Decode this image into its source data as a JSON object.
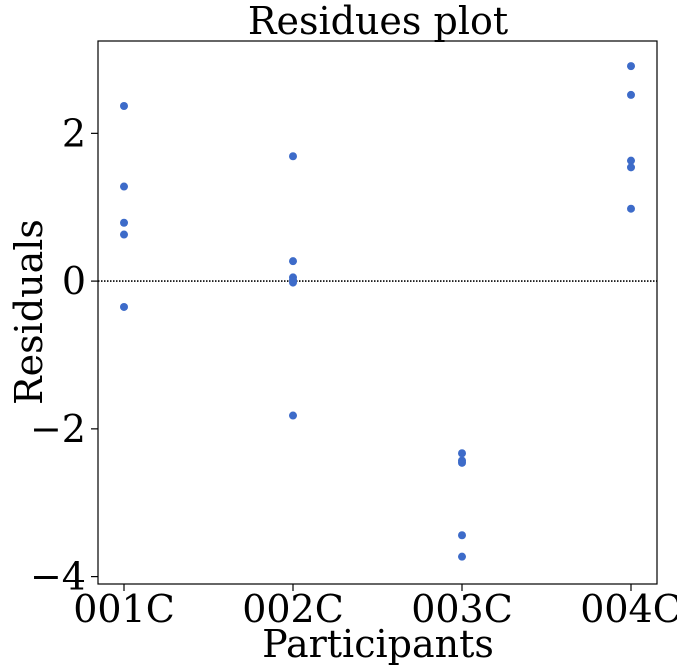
{
  "chart_data": {
    "type": "scatter",
    "title": "Residues plot",
    "xlabel": "Participants",
    "ylabel": "Residuals",
    "categories": [
      "001C",
      "002C",
      "003C",
      "004C"
    ],
    "ylim": [
      -4.1,
      3.25
    ],
    "yticks": [
      -4,
      -2,
      0,
      2
    ],
    "yticklabels": [
      "−4",
      "−2",
      "0",
      "2"
    ],
    "reference_line": {
      "y": 0,
      "style": "dotted"
    },
    "grid": false,
    "marker_color": "#3d6bc9",
    "points": [
      {
        "category": "001C",
        "y": 2.37
      },
      {
        "category": "001C",
        "y": 1.28
      },
      {
        "category": "001C",
        "y": 0.79
      },
      {
        "category": "001C",
        "y": 0.63
      },
      {
        "category": "001C",
        "y": -0.35
      },
      {
        "category": "002C",
        "y": 1.69
      },
      {
        "category": "002C",
        "y": 0.27
      },
      {
        "category": "002C",
        "y": 0.05
      },
      {
        "category": "002C",
        "y": 0.01
      },
      {
        "category": "002C",
        "y": -0.02
      },
      {
        "category": "002C",
        "y": -1.82
      },
      {
        "category": "003C",
        "y": -2.33
      },
      {
        "category": "003C",
        "y": -2.43
      },
      {
        "category": "003C",
        "y": -2.46
      },
      {
        "category": "003C",
        "y": -3.44
      },
      {
        "category": "003C",
        "y": -3.73
      },
      {
        "category": "004C",
        "y": 2.91
      },
      {
        "category": "004C",
        "y": 2.52
      },
      {
        "category": "004C",
        "y": 1.63
      },
      {
        "category": "004C",
        "y": 1.54
      },
      {
        "category": "004C",
        "y": 0.98
      }
    ]
  }
}
